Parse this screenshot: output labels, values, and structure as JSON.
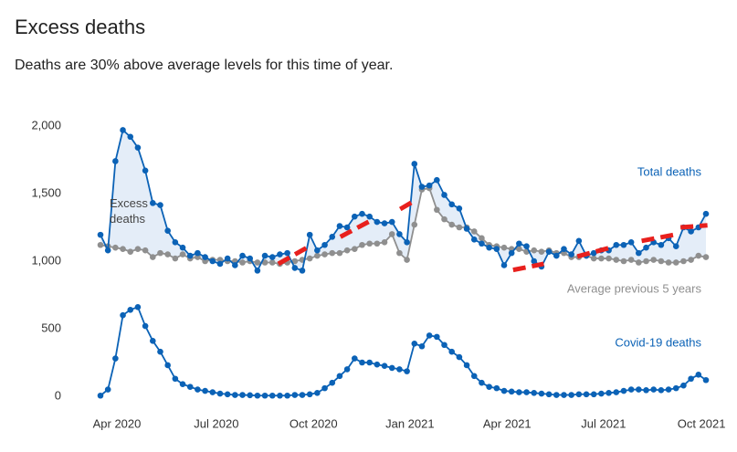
{
  "chart_data": {
    "type": "line",
    "title": "Excess deaths",
    "subtitle": "Deaths are 30% above average levels for this time of year.",
    "annotations": [
      "Excess deaths"
    ],
    "x": [
      0,
      1,
      2,
      3,
      4,
      5,
      6,
      7,
      8,
      9,
      10,
      11,
      12,
      13,
      14,
      15,
      16,
      17,
      18,
      19,
      20,
      21,
      22,
      23,
      24,
      25,
      26,
      27,
      28,
      29,
      30,
      31,
      32,
      33,
      34,
      35,
      36,
      37,
      38,
      39,
      40,
      41,
      42,
      43,
      44,
      45,
      46,
      47,
      48,
      49,
      50,
      51,
      52,
      53,
      54,
      55,
      56,
      57,
      58,
      59,
      60,
      61,
      62,
      63,
      64,
      65,
      66,
      67,
      68,
      69,
      70,
      71,
      72,
      73,
      74,
      75,
      76,
      77,
      78,
      79,
      80,
      81
    ],
    "xlim": [
      0,
      81
    ],
    "xticks": [
      {
        "value": 2.2,
        "label": "Apr 2020"
      },
      {
        "value": 15.5,
        "label": "Jul 2020"
      },
      {
        "value": 28.5,
        "label": "Oct 2020"
      },
      {
        "value": 41.4,
        "label": "Jan 2021"
      },
      {
        "value": 54.4,
        "label": "Apr 2021"
      },
      {
        "value": 67.3,
        "label": "Jul 2021"
      },
      {
        "value": 80.4,
        "label": "Oct 2021"
      }
    ],
    "ylim": [
      0,
      2000
    ],
    "yticks": [
      0,
      500,
      {
        "value": 1000,
        "label": "1,000"
      },
      {
        "value": 1500,
        "label": "1,500"
      },
      {
        "value": 2000,
        "label": "2,000"
      }
    ],
    "grid": false,
    "series": [
      {
        "name": "Total deaths",
        "color": "#0b62b6",
        "values": [
          1195,
          1080,
          1740,
          1970,
          1920,
          1840,
          1670,
          1430,
          1415,
          1225,
          1140,
          1100,
          1040,
          1060,
          1030,
          1000,
          980,
          1020,
          970,
          1040,
          1020,
          930,
          1040,
          1030,
          1050,
          1060,
          950,
          930,
          1195,
          1080,
          1120,
          1180,
          1260,
          1250,
          1330,
          1350,
          1330,
          1290,
          1280,
          1290,
          1200,
          1140,
          1720,
          1550,
          1560,
          1600,
          1490,
          1420,
          1390,
          1240,
          1160,
          1130,
          1100,
          1090,
          970,
          1060,
          1130,
          1110,
          1000,
          960,
          1070,
          1040,
          1090,
          1050,
          1150,
          1040,
          1060,
          1080,
          1080,
          1120,
          1120,
          1140,
          1060,
          1100,
          1140,
          1120,
          1170,
          1110,
          1250,
          1220,
          1250,
          1350
        ]
      },
      {
        "name": "Average previous 5 years",
        "color": "#8f8f8f",
        "values": [
          1120,
          1110,
          1100,
          1090,
          1070,
          1090,
          1080,
          1030,
          1060,
          1050,
          1020,
          1050,
          1020,
          1030,
          1000,
          1010,
          1010,
          1000,
          1000,
          990,
          1000,
          990,
          990,
          990,
          980,
          990,
          1000,
          1010,
          1020,
          1040,
          1050,
          1060,
          1060,
          1080,
          1090,
          1120,
          1130,
          1130,
          1140,
          1200,
          1060,
          1010,
          1270,
          1530,
          1540,
          1380,
          1310,
          1270,
          1250,
          1250,
          1220,
          1170,
          1120,
          1110,
          1100,
          1090,
          1090,
          1070,
          1080,
          1070,
          1080,
          1060,
          1060,
          1030,
          1030,
          1040,
          1020,
          1020,
          1020,
          1010,
          1000,
          1010,
          990,
          1000,
          1010,
          1000,
          990,
          990,
          1000,
          1010,
          1040,
          1030
        ]
      },
      {
        "name": "Covid-19 deaths",
        "color": "#0b62b6",
        "values": [
          5,
          50,
          280,
          600,
          640,
          660,
          520,
          410,
          330,
          230,
          130,
          90,
          70,
          50,
          40,
          30,
          20,
          15,
          10,
          10,
          8,
          5,
          5,
          5,
          5,
          5,
          10,
          10,
          15,
          25,
          60,
          100,
          150,
          200,
          280,
          250,
          250,
          235,
          225,
          210,
          200,
          185,
          390,
          370,
          450,
          440,
          380,
          330,
          290,
          230,
          150,
          100,
          70,
          60,
          40,
          35,
          30,
          30,
          25,
          20,
          15,
          10,
          10,
          10,
          15,
          15,
          15,
          20,
          25,
          30,
          40,
          50,
          50,
          45,
          50,
          45,
          50,
          60,
          80,
          130,
          160,
          120
        ]
      },
      {
        "color": "#e8201d",
        "x": [
          23.8,
          28.1,
          null,
          32.1,
          36.0,
          null,
          40.1,
          41.8,
          null,
          55.2,
          59.3,
          null,
          63.8,
          68.2,
          null,
          72.4,
          76.7,
          null,
          77.6,
          81.2
        ],
        "values": [
          980,
          1115,
          null,
          1180,
          1295,
          null,
          1385,
          1440,
          null,
          935,
          980,
          null,
          1035,
          1100,
          null,
          1150,
          1195,
          null,
          1250,
          1265
        ]
      }
    ]
  }
}
